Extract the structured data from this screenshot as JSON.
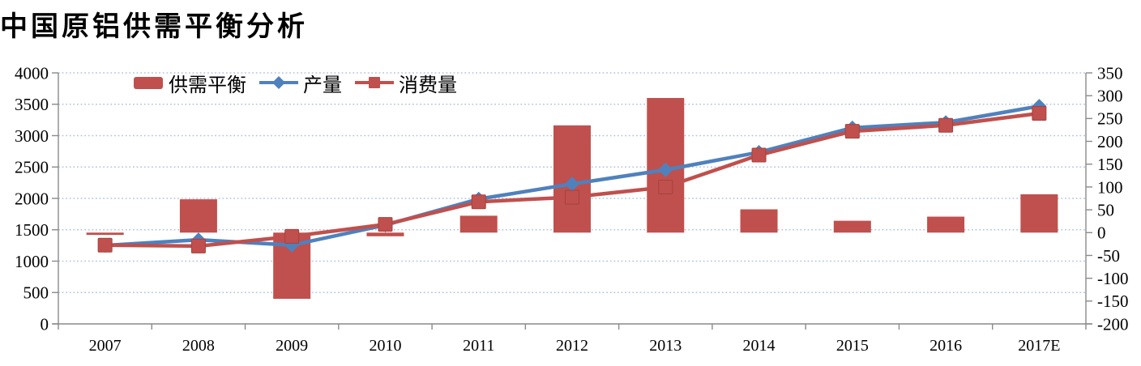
{
  "title": "中国原铝供需平衡分析",
  "legend": [
    {
      "label": "供需平衡",
      "swatch": "bar"
    },
    {
      "label": "产量",
      "swatch": "line-diamond"
    },
    {
      "label": "消费量",
      "swatch": "line-square"
    }
  ],
  "colors": {
    "bar_red": "#C0504D",
    "line_blue": "#4F81BD",
    "line_red": "#C0504D",
    "gridline": "#B3C6DF",
    "axis": "#8a8a8a"
  },
  "chart_data": {
    "type": "bar",
    "subtype": "combo-bar-lines",
    "title": "中国原铝供需平衡分析",
    "categories": [
      "2007",
      "2008",
      "2009",
      "2010",
      "2011",
      "2012",
      "2013",
      "2014",
      "2015",
      "2016",
      "2017E"
    ],
    "series": [
      {
        "name": "供需平衡",
        "type": "bar",
        "axis": "right",
        "color": "#C0504D",
        "values": [
          -5,
          73,
          -145,
          -8,
          37,
          235,
          295,
          51,
          26,
          35,
          84
        ]
      },
      {
        "name": "产量",
        "type": "line",
        "marker": "diamond",
        "axis": "left",
        "color": "#4F81BD",
        "values": [
          1250,
          1340,
          1255,
          1575,
          1990,
          2230,
          2455,
          2735,
          3125,
          3210,
          3470
        ]
      },
      {
        "name": "消费量",
        "type": "line",
        "marker": "square",
        "axis": "left",
        "color": "#C0504D",
        "values": [
          1255,
          1240,
          1395,
          1585,
          1945,
          2020,
          2180,
          2690,
          3070,
          3165,
          3355
        ]
      }
    ],
    "left_axis": {
      "min": 0,
      "max": 4000,
      "step": 500,
      "ticks_top_to_bottom": [
        "4000",
        "3500",
        "3000",
        "2500",
        "2000",
        "1500",
        "1000",
        "500",
        "0"
      ]
    },
    "right_axis": {
      "min": -200,
      "max": 350,
      "step": 50,
      "ticks_top_to_bottom": [
        "350",
        "300",
        "250",
        "200",
        "150",
        "100",
        "50",
        "0",
        "-50",
        "-100",
        "-150",
        "-200"
      ]
    },
    "grid": "horizontal-dotted",
    "legend_position": "top-left-inside"
  }
}
